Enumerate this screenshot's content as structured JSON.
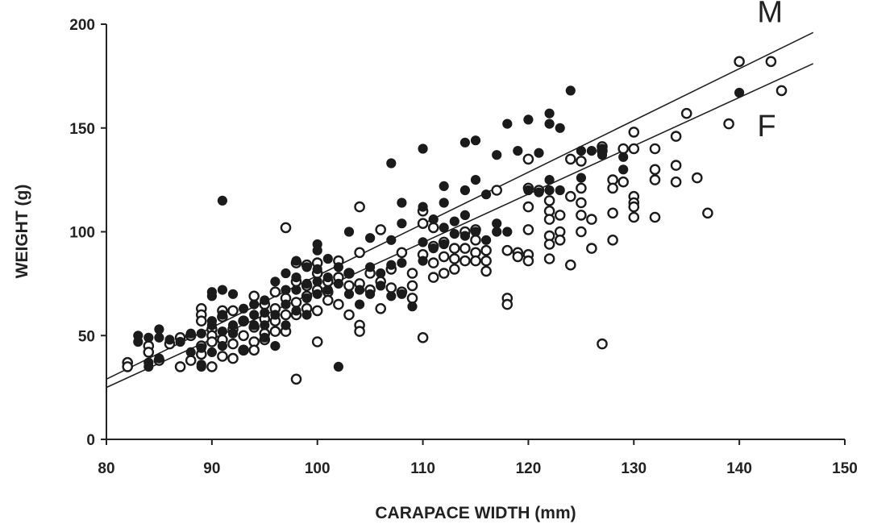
{
  "chart_data": {
    "type": "scatter",
    "xlabel": "CARAPACE WIDTH (mm)",
    "ylabel": "WEIGHT (g)",
    "xlim": [
      80,
      150
    ],
    "ylim": [
      0,
      200
    ],
    "xticks": [
      "80",
      "90",
      "100",
      "110",
      "120",
      "130",
      "140",
      "150"
    ],
    "yticks": [
      "0",
      "50",
      "100",
      "150",
      "200"
    ],
    "grid": false,
    "legend": "none",
    "regression_lines": [
      {
        "label": "M",
        "x": [
          80,
          147
        ],
        "y": [
          29,
          196
        ],
        "label_pos": [
          141.7,
          201
        ]
      },
      {
        "label": "F",
        "x": [
          80,
          147
        ],
        "y": [
          25,
          181
        ],
        "label_pos": [
          141.7,
          146
        ]
      }
    ],
    "series": [
      {
        "marker": "filled-circle",
        "points": [
          [
            83,
            50
          ],
          [
            83,
            47
          ],
          [
            84,
            49
          ],
          [
            84,
            35
          ],
          [
            84,
            37
          ],
          [
            85,
            53
          ],
          [
            85,
            49
          ],
          [
            85,
            39
          ],
          [
            86,
            48
          ],
          [
            87,
            47
          ],
          [
            88,
            51
          ],
          [
            88,
            42
          ],
          [
            89,
            51
          ],
          [
            89,
            44
          ],
          [
            89,
            36
          ],
          [
            89,
            35
          ],
          [
            90,
            55
          ],
          [
            90,
            57
          ],
          [
            90,
            69
          ],
          [
            90,
            71
          ],
          [
            90,
            42
          ],
          [
            91,
            115
          ],
          [
            91,
            72
          ],
          [
            91,
            60
          ],
          [
            91,
            52
          ],
          [
            91,
            45
          ],
          [
            92,
            70
          ],
          [
            92,
            55
          ],
          [
            92,
            51
          ],
          [
            93,
            63
          ],
          [
            93,
            57
          ],
          [
            93,
            43
          ],
          [
            94,
            65
          ],
          [
            94,
            60
          ],
          [
            94,
            55
          ],
          [
            95,
            67
          ],
          [
            95,
            61
          ],
          [
            95,
            55
          ],
          [
            95,
            49
          ],
          [
            96,
            76
          ],
          [
            96,
            60
          ],
          [
            96,
            45
          ],
          [
            97,
            80
          ],
          [
            97,
            72
          ],
          [
            97,
            65
          ],
          [
            97,
            55
          ],
          [
            98,
            86
          ],
          [
            98,
            78
          ],
          [
            98,
            72
          ],
          [
            98,
            62
          ],
          [
            99,
            83
          ],
          [
            99,
            75
          ],
          [
            99,
            68
          ],
          [
            99,
            60
          ],
          [
            100,
            94
          ],
          [
            100,
            91
          ],
          [
            100,
            82
          ],
          [
            100,
            76
          ],
          [
            100,
            70
          ],
          [
            101,
            87
          ],
          [
            101,
            78
          ],
          [
            101,
            72
          ],
          [
            102,
            83
          ],
          [
            102,
            75
          ],
          [
            102,
            35
          ],
          [
            103,
            100
          ],
          [
            103,
            80
          ],
          [
            103,
            70
          ],
          [
            104,
            72
          ],
          [
            104,
            65
          ],
          [
            105,
            97
          ],
          [
            105,
            83
          ],
          [
            105,
            70
          ],
          [
            106,
            80
          ],
          [
            106,
            74
          ],
          [
            107,
            133
          ],
          [
            107,
            96
          ],
          [
            107,
            84
          ],
          [
            107,
            69
          ],
          [
            108,
            114
          ],
          [
            108,
            104
          ],
          [
            108,
            85
          ],
          [
            108,
            70
          ],
          [
            109,
            64
          ],
          [
            110,
            140
          ],
          [
            110,
            112
          ],
          [
            110,
            95
          ],
          [
            110,
            86
          ],
          [
            111,
            106
          ],
          [
            111,
            92
          ],
          [
            112,
            122
          ],
          [
            112,
            114
          ],
          [
            112,
            102
          ],
          [
            112,
            94
          ],
          [
            113,
            105
          ],
          [
            113,
            99
          ],
          [
            114,
            143
          ],
          [
            114,
            120
          ],
          [
            114,
            108
          ],
          [
            114,
            98
          ],
          [
            115,
            144
          ],
          [
            115,
            125
          ],
          [
            115,
            100
          ],
          [
            116,
            118
          ],
          [
            116,
            96
          ],
          [
            117,
            137
          ],
          [
            117,
            104
          ],
          [
            117,
            100
          ],
          [
            118,
            152
          ],
          [
            118,
            100
          ],
          [
            119,
            139
          ],
          [
            120,
            154
          ],
          [
            120,
            120
          ],
          [
            121,
            138
          ],
          [
            121,
            119
          ],
          [
            122,
            157
          ],
          [
            122,
            152
          ],
          [
            122,
            125
          ],
          [
            122,
            120
          ],
          [
            123,
            150
          ],
          [
            123,
            120
          ],
          [
            124,
            168
          ],
          [
            125,
            139
          ],
          [
            125,
            126
          ],
          [
            126,
            139
          ],
          [
            127,
            137
          ],
          [
            127,
            140
          ],
          [
            129,
            136
          ],
          [
            129,
            130
          ],
          [
            140,
            167
          ]
        ]
      },
      {
        "marker": "open-circle",
        "points": [
          [
            82,
            37
          ],
          [
            82,
            35
          ],
          [
            84,
            45
          ],
          [
            84,
            42
          ],
          [
            85,
            38
          ],
          [
            86,
            46
          ],
          [
            87,
            35
          ],
          [
            87,
            49
          ],
          [
            88,
            50
          ],
          [
            88,
            38
          ],
          [
            89,
            63
          ],
          [
            89,
            60
          ],
          [
            89,
            57
          ],
          [
            89,
            45
          ],
          [
            89,
            41
          ],
          [
            90,
            53
          ],
          [
            90,
            50
          ],
          [
            90,
            47
          ],
          [
            90,
            35
          ],
          [
            91,
            62
          ],
          [
            91,
            59
          ],
          [
            91,
            48
          ],
          [
            91,
            40
          ],
          [
            92,
            62
          ],
          [
            92,
            53
          ],
          [
            92,
            46
          ],
          [
            92,
            39
          ],
          [
            93,
            57
          ],
          [
            93,
            50
          ],
          [
            93,
            43
          ],
          [
            94,
            69
          ],
          [
            94,
            54
          ],
          [
            94,
            47
          ],
          [
            94,
            43
          ],
          [
            95,
            65
          ],
          [
            95,
            58
          ],
          [
            95,
            51
          ],
          [
            95,
            48
          ],
          [
            96,
            71
          ],
          [
            96,
            63
          ],
          [
            96,
            57
          ],
          [
            96,
            52
          ],
          [
            97,
            102
          ],
          [
            97,
            68
          ],
          [
            97,
            60
          ],
          [
            97,
            52
          ],
          [
            98,
            85
          ],
          [
            98,
            76
          ],
          [
            98,
            66
          ],
          [
            98,
            60
          ],
          [
            98,
            29
          ],
          [
            99,
            84
          ],
          [
            99,
            74
          ],
          [
            99,
            69
          ],
          [
            99,
            63
          ],
          [
            100,
            85
          ],
          [
            100,
            80
          ],
          [
            100,
            72
          ],
          [
            100,
            62
          ],
          [
            100,
            47
          ],
          [
            101,
            76
          ],
          [
            101,
            71
          ],
          [
            101,
            67
          ],
          [
            102,
            86
          ],
          [
            102,
            78
          ],
          [
            102,
            65
          ],
          [
            103,
            80
          ],
          [
            103,
            74
          ],
          [
            103,
            60
          ],
          [
            104,
            112
          ],
          [
            104,
            90
          ],
          [
            104,
            75
          ],
          [
            104,
            55
          ],
          [
            104,
            52
          ],
          [
            105,
            80
          ],
          [
            105,
            72
          ],
          [
            106,
            101
          ],
          [
            106,
            76
          ],
          [
            106,
            63
          ],
          [
            107,
            82
          ],
          [
            107,
            73
          ],
          [
            108,
            90
          ],
          [
            108,
            71
          ],
          [
            109,
            80
          ],
          [
            109,
            74
          ],
          [
            109,
            68
          ],
          [
            110,
            110
          ],
          [
            110,
            104
          ],
          [
            110,
            89
          ],
          [
            110,
            49
          ],
          [
            111,
            102
          ],
          [
            111,
            93
          ],
          [
            111,
            85
          ],
          [
            111,
            78
          ],
          [
            112,
            95
          ],
          [
            112,
            88
          ],
          [
            112,
            80
          ],
          [
            113,
            92
          ],
          [
            113,
            87
          ],
          [
            113,
            82
          ],
          [
            114,
            100
          ],
          [
            114,
            92
          ],
          [
            114,
            86
          ],
          [
            115,
            101
          ],
          [
            115,
            96
          ],
          [
            115,
            90
          ],
          [
            115,
            86
          ],
          [
            116,
            91
          ],
          [
            116,
            86
          ],
          [
            116,
            81
          ],
          [
            117,
            120
          ],
          [
            118,
            91
          ],
          [
            118,
            68
          ],
          [
            118,
            65
          ],
          [
            119,
            90
          ],
          [
            119,
            88
          ],
          [
            120,
            135
          ],
          [
            120,
            121
          ],
          [
            120,
            112
          ],
          [
            120,
            101
          ],
          [
            120,
            89
          ],
          [
            120,
            86
          ],
          [
            121,
            120
          ],
          [
            122,
            115
          ],
          [
            122,
            110
          ],
          [
            122,
            106
          ],
          [
            122,
            98
          ],
          [
            122,
            94
          ],
          [
            122,
            87
          ],
          [
            123,
            108
          ],
          [
            123,
            100
          ],
          [
            123,
            96
          ],
          [
            124,
            135
          ],
          [
            124,
            117
          ],
          [
            124,
            84
          ],
          [
            125,
            134
          ],
          [
            125,
            121
          ],
          [
            125,
            114
          ],
          [
            125,
            108
          ],
          [
            125,
            100
          ],
          [
            126,
            106
          ],
          [
            126,
            92
          ],
          [
            127,
            141
          ],
          [
            127,
            139
          ],
          [
            127,
            46
          ],
          [
            128,
            125
          ],
          [
            128,
            121
          ],
          [
            128,
            109
          ],
          [
            128,
            96
          ],
          [
            129,
            140
          ],
          [
            129,
            124
          ],
          [
            130,
            148
          ],
          [
            130,
            140
          ],
          [
            130,
            117
          ],
          [
            130,
            114
          ],
          [
            130,
            112
          ],
          [
            130,
            107
          ],
          [
            132,
            140
          ],
          [
            132,
            130
          ],
          [
            132,
            125
          ],
          [
            132,
            107
          ],
          [
            134,
            146
          ],
          [
            134,
            132
          ],
          [
            134,
            124
          ],
          [
            135,
            157
          ],
          [
            136,
            126
          ],
          [
            137,
            109
          ],
          [
            139,
            152
          ],
          [
            140,
            182
          ],
          [
            143,
            182
          ],
          [
            144,
            168
          ]
        ]
      }
    ]
  }
}
